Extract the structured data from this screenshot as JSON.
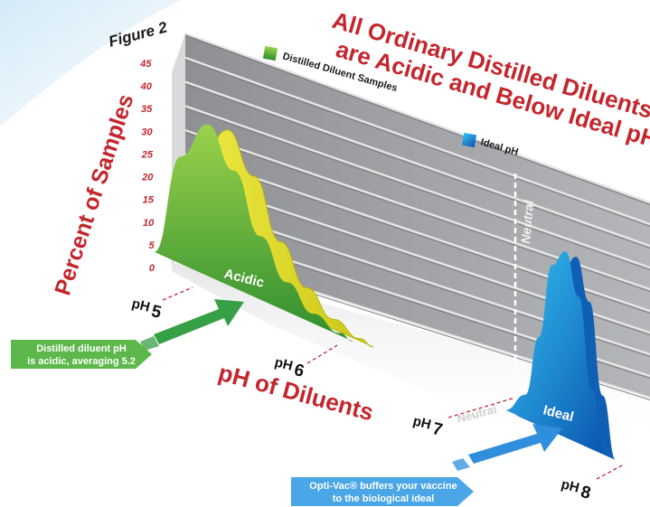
{
  "figure_label": "Figure 2",
  "chart_data": {
    "type": "area",
    "title_line1": "All Ordinary Distilled Diluents",
    "title_line2": "are Acidic and Below Ideal pH",
    "ylabel": "Percent of Samples",
    "xlabel": "pH of Diluents",
    "ylim": [
      0,
      45
    ],
    "y_ticks": [
      "0",
      "5",
      "10",
      "15",
      "20",
      "25",
      "30",
      "35",
      "40",
      "45"
    ],
    "x_ticks": [
      {
        "label": "pH",
        "sub": "5",
        "value": 5
      },
      {
        "label": "pH",
        "sub": "6",
        "value": 6
      },
      {
        "label": "pH",
        "sub": "7",
        "value": 7
      },
      {
        "label": "pH",
        "sub": "8",
        "value": 8
      }
    ],
    "neutral_label": "Neutral",
    "series": [
      {
        "name": "Distilled Diluent Samples",
        "region_label": "Acidic",
        "color": "#43a535",
        "x": [
          4.8,
          5.0,
          5.2,
          5.4,
          5.6,
          5.8,
          6.0,
          6.2,
          6.3
        ],
        "values": [
          0,
          22,
          31,
          24,
          13,
          6,
          2,
          0.5,
          0
        ]
      },
      {
        "name": "Ideal pH",
        "region_label": "Ideal",
        "color": "#1a7fd4",
        "x": [
          7.45,
          7.6,
          7.7,
          7.8,
          7.9,
          8.0,
          8.1,
          8.2
        ],
        "values": [
          0,
          5,
          18,
          34,
          38,
          30,
          12,
          0
        ]
      }
    ]
  },
  "callouts": {
    "distilled_line1": "Distilled diluent pH",
    "distilled_line2": "is acidic, averaging 5.2",
    "optivac_line1": "Opti-Vac® buffers your vaccine",
    "optivac_line2": "to the biological ideal"
  },
  "colors": {
    "title_red": "#c4262e",
    "acidic_green": "#43a535",
    "acidic_yellow": "#e8e020",
    "ideal_blue": "#1a7fd4",
    "wall_gray": "#a7a9ac"
  }
}
